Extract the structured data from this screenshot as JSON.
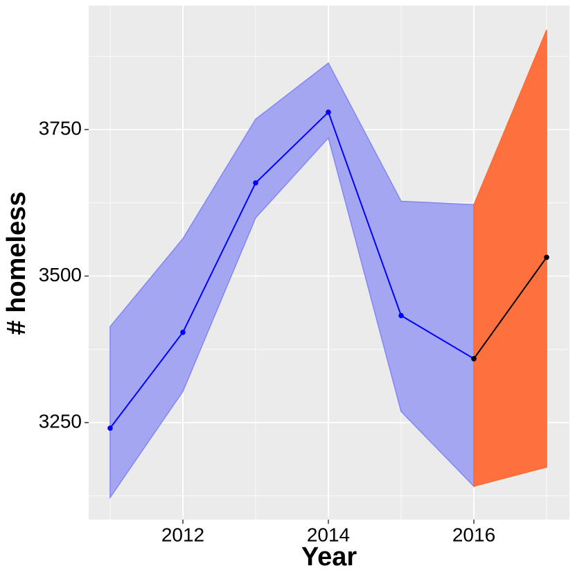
{
  "chart_data": {
    "type": "line",
    "x_label": "Year",
    "y_label": "# homeless",
    "x": [
      2011,
      2012,
      2013,
      2014,
      2015,
      2016,
      2017
    ],
    "series": [
      {
        "color": "#0000ff",
        "values": [
          3240.5,
          3404,
          3659,
          3779.6,
          3432.6,
          3359,
          null
        ]
      },
      {
        "color": "#000000",
        "values": [
          null,
          null,
          null,
          null,
          null,
          3359,
          3532
        ]
      }
    ],
    "bands": [
      {
        "color": "#a4a6f2",
        "edge": "#8286f4",
        "lower": [
          3122.3,
          3303.2,
          3599.4,
          3735.8,
          3268.9,
          3141.3,
          null
        ],
        "upper": [
          3413.7,
          3563.8,
          3767.7,
          3863.5,
          3627.7,
          3621.8,
          null
        ]
      },
      {
        "color": "#fe703e",
        "edge": "#fe6a35",
        "lower": [
          null,
          null,
          null,
          null,
          null,
          3141.3,
          3174
        ],
        "upper": [
          null,
          null,
          null,
          null,
          null,
          3621.8,
          3920
        ]
      }
    ],
    "xlim": [
      2010.705,
      2017.314
    ],
    "ylim": [
      3084.5,
      3961.6
    ],
    "xticks": [
      2012,
      2014,
      2016
    ],
    "yticks": [
      3250,
      3500,
      3750
    ],
    "x_minor_ticks": [
      2011,
      2013,
      2015,
      2017
    ],
    "y_minor_ticks": [
      3125,
      3375,
      3625,
      3875
    ],
    "grid": true
  }
}
